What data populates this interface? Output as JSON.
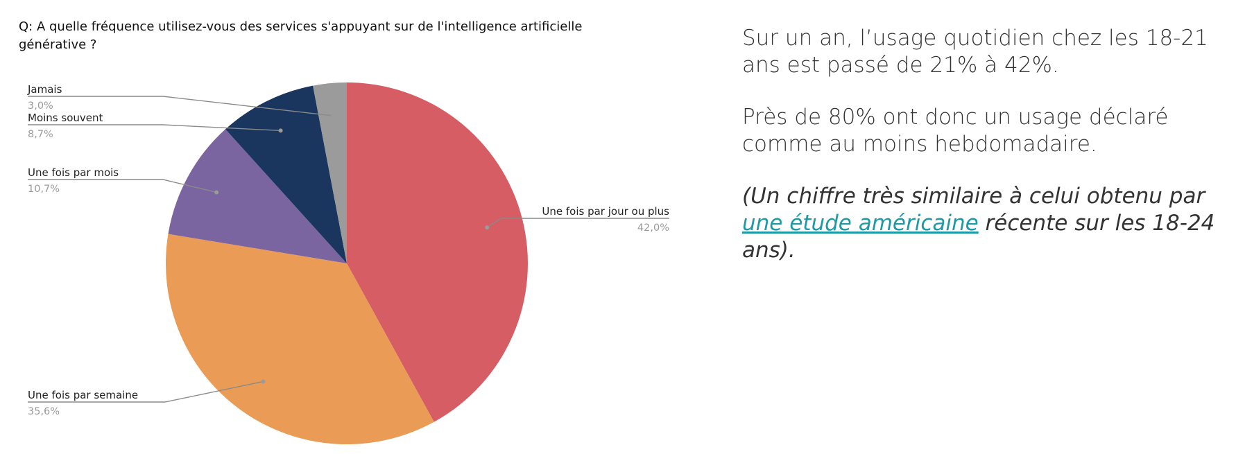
{
  "question": "Q: A quelle fréquence utilisez-vous des services s'appuyant sur de l'intelligence artificielle générative ?",
  "chart_data": {
    "type": "pie",
    "title": "",
    "slices": [
      {
        "label": "Une fois par jour ou plus",
        "value": 42.0,
        "display": "42,0%",
        "color": "#d55d63"
      },
      {
        "label": "Une fois par semaine",
        "value": 35.6,
        "display": "35,6%",
        "color": "#ea9c57"
      },
      {
        "label": "Une fois par mois",
        "value": 10.7,
        "display": "10,7%",
        "color": "#7b65a0"
      },
      {
        "label": "Moins souvent",
        "value": 8.7,
        "display": "8,7%",
        "color": "#1a365e"
      },
      {
        "label": "Jamais",
        "value": 3.0,
        "display": "3,0%",
        "color": "#9b9b9b"
      }
    ],
    "start_angle": "12 o'clock",
    "direction": "clockwise",
    "legend": "none",
    "labels": "leader-lines"
  },
  "panel": {
    "para1": "Sur un an, l’usage quotidien chez les 18-21 ans est passé de 21% à 42%.",
    "para2": "Près de 80% ont donc un usage déclaré comme au moins hebdomadaire.",
    "para3_before": "(Un chiffre très similaire à celui obtenu par ",
    "para3_link": "une étude américaine",
    "para3_after": " récente sur les 18-24 ans).",
    "link_color": "#1d9aa6"
  }
}
